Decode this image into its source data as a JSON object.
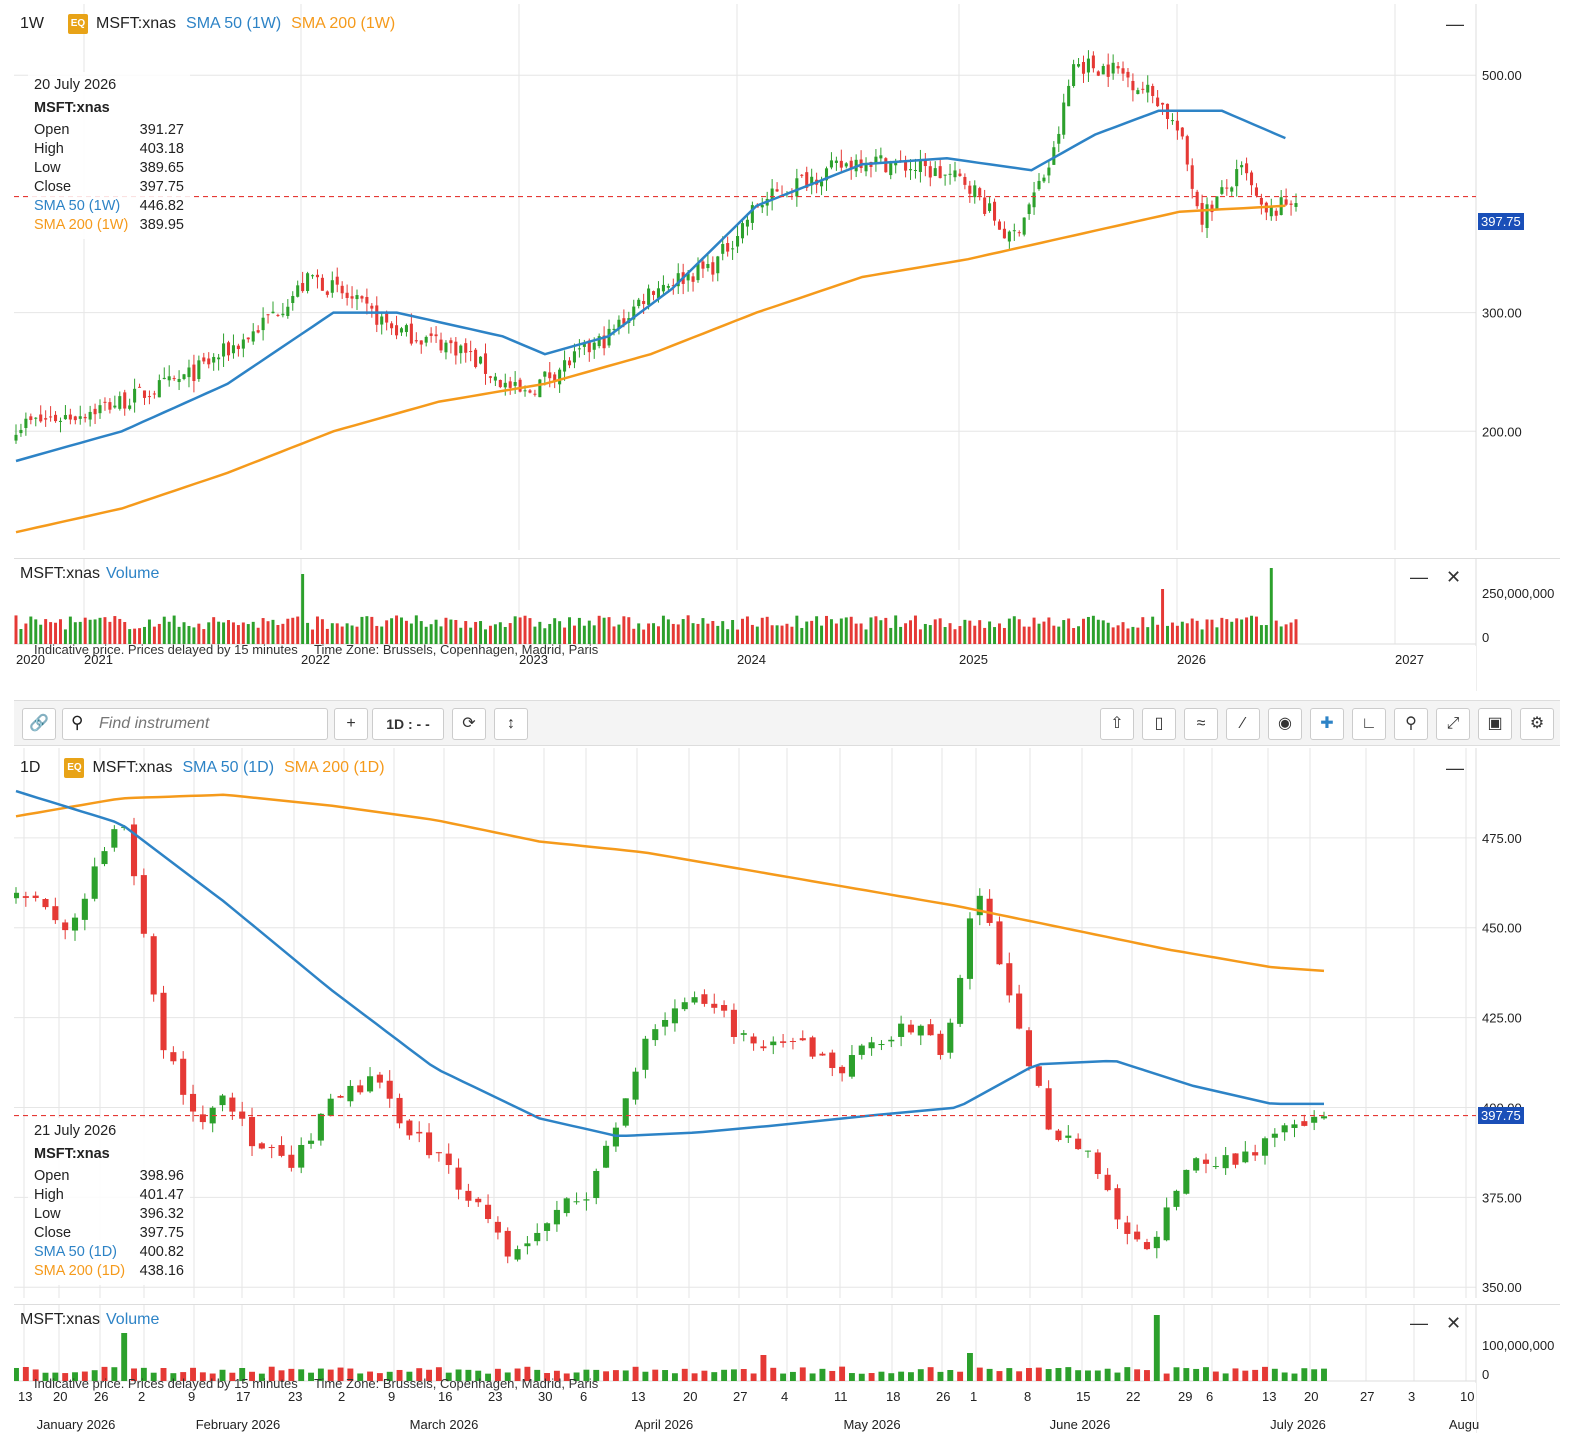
{
  "top": {
    "timeframe": "1W",
    "badge": "EQ",
    "symbol": "MSFT:xnas",
    "sma50_label": "SMA 50 (1W)",
    "sma200_label": "SMA 200 (1W)",
    "info": {
      "date": "20 July 2026",
      "symbol": "MSFT:xnas",
      "open_label": "Open",
      "open": "391.27",
      "high_label": "High",
      "high": "403.18",
      "low_label": "Low",
      "low": "389.65",
      "close_label": "Close",
      "close": "397.75",
      "sma50_label": "SMA 50 (1W)",
      "sma50": "446.82",
      "sma200_label": "SMA 200 (1W)",
      "sma200": "389.95"
    },
    "last_price": "397.75",
    "volume_title": "MSFT:xnas",
    "volume_label": "Volume",
    "notice": "Indicative price. Prices delayed by 15 minutes",
    "timezone": "Time Zone: Brussels, Copenhagen, Madrid, Paris",
    "collapse_icon": "minus-icon",
    "close_icon": "close-icon"
  },
  "bottom": {
    "timeframe": "1D",
    "badge": "EQ",
    "symbol": "MSFT:xnas",
    "sma50_label": "SMA 50 (1D)",
    "sma200_label": "SMA 200 (1D)",
    "info": {
      "date": "21 July 2026",
      "symbol": "MSFT:xnas",
      "open_label": "Open",
      "open": "398.96",
      "high_label": "High",
      "high": "401.47",
      "low_label": "Low",
      "low": "396.32",
      "close_label": "Close",
      "close": "397.75",
      "sma50_label": "SMA 50 (1D)",
      "sma50": "400.82",
      "sma200_label": "SMA 200 (1D)",
      "sma200": "438.16"
    },
    "last_price": "397.75",
    "volume_title": "MSFT:xnas",
    "volume_label": "Volume",
    "notice": "Indicative price. Prices delayed by 15 minutes",
    "timezone": "Time Zone: Brussels, Copenhagen, Madrid, Paris"
  },
  "toolbar": {
    "search_placeholder": "Find instrument",
    "add_label": "+",
    "interval_label": "1D : - -",
    "icons": [
      "link-icon",
      "search-icon",
      "plus-icon",
      "refresh-icon",
      "vertical-arrows-icon",
      "share-icon",
      "candles-icon",
      "indicator-icon",
      "draw-line-icon",
      "eye-icon",
      "crosshair-icon",
      "curve-icon",
      "zoom-icon",
      "fullscreen-icon",
      "camera-icon",
      "gear-icon"
    ]
  },
  "colors": {
    "up": "#2ca02c",
    "down": "#e53935",
    "sma50": "#2d83c6",
    "sma200": "#f59a1b",
    "price_line": "#e53935",
    "price_tag": "#1a4fb8"
  },
  "chart_data": [
    {
      "type": "candlestick",
      "timeframe": "weekly",
      "y_ticks": [
        "200.00",
        "300.00",
        "500.00"
      ],
      "ylim": [
        100,
        560
      ],
      "x_ticks": [
        "2020",
        "2021",
        "2022",
        "2023",
        "2024",
        "2025",
        "2026",
        "2027"
      ],
      "close_path": [
        [
          2020.5,
          205
        ],
        [
          2020.8,
          215
        ],
        [
          2021.0,
          225
        ],
        [
          2021.3,
          245
        ],
        [
          2021.6,
          280
        ],
        [
          2021.9,
          330
        ],
        [
          2022.0,
          320
        ],
        [
          2022.3,
          285
        ],
        [
          2022.6,
          270
        ],
        [
          2022.8,
          240
        ],
        [
          2022.9,
          230
        ],
        [
          2023.0,
          245
        ],
        [
          2023.3,
          280
        ],
        [
          2023.5,
          320
        ],
        [
          2023.8,
          340
        ],
        [
          2024.0,
          390
        ],
        [
          2024.2,
          410
        ],
        [
          2024.5,
          430
        ],
        [
          2024.8,
          420
        ],
        [
          2025.0,
          410
        ],
        [
          2025.2,
          360
        ],
        [
          2025.4,
          430
        ],
        [
          2025.5,
          510
        ],
        [
          2025.7,
          505
        ],
        [
          2025.9,
          480
        ],
        [
          2026.0,
          450
        ],
        [
          2026.1,
          380
        ],
        [
          2026.3,
          420
        ],
        [
          2026.4,
          380
        ],
        [
          2026.55,
          397.75
        ]
      ],
      "sma50_path": [
        [
          2020.5,
          175
        ],
        [
          2021.0,
          200
        ],
        [
          2021.5,
          240
        ],
        [
          2022.0,
          300
        ],
        [
          2022.3,
          300
        ],
        [
          2022.8,
          280
        ],
        [
          2023.0,
          265
        ],
        [
          2023.3,
          280
        ],
        [
          2023.6,
          320
        ],
        [
          2024.0,
          390
        ],
        [
          2024.5,
          425
        ],
        [
          2024.9,
          430
        ],
        [
          2025.3,
          420
        ],
        [
          2025.6,
          450
        ],
        [
          2025.9,
          470
        ],
        [
          2026.2,
          470
        ],
        [
          2026.5,
          447
        ]
      ],
      "sma200_path": [
        [
          2020.5,
          115
        ],
        [
          2021.0,
          135
        ],
        [
          2021.5,
          165
        ],
        [
          2022.0,
          200
        ],
        [
          2022.5,
          225
        ],
        [
          2023.0,
          240
        ],
        [
          2023.5,
          265
        ],
        [
          2024.0,
          300
        ],
        [
          2024.5,
          330
        ],
        [
          2025.0,
          345
        ],
        [
          2025.5,
          365
        ],
        [
          2026.0,
          385
        ],
        [
          2026.5,
          390
        ]
      ],
      "last_price": 397.75,
      "volume_ticks": [
        "250,000,000",
        "0"
      ]
    },
    {
      "type": "candlestick",
      "timeframe": "daily",
      "y_ticks": [
        "350.00",
        "375.00",
        "400.00",
        "425.00",
        "450.00",
        "475.00"
      ],
      "ylim": [
        347,
        500
      ],
      "x_ticks": [
        "13",
        "20",
        "26",
        "2",
        "9",
        "17",
        "23",
        "2",
        "9",
        "16",
        "23",
        "30",
        "6",
        "13",
        "20",
        "27",
        "4",
        "11",
        "18",
        "26",
        "1",
        "8",
        "15",
        "22",
        "29",
        "6",
        "13",
        "20",
        "27",
        "3",
        "10"
      ],
      "month_labels": [
        "January 2026",
        "February 2026",
        "March 2026",
        "April 2026",
        "May 2026",
        "June 2026",
        "July 2026",
        "Augu"
      ],
      "close_path": [
        [
          0,
          462
        ],
        [
          4,
          448
        ],
        [
          6,
          465
        ],
        [
          8,
          480
        ],
        [
          9,
          465
        ],
        [
          11,
          420
        ],
        [
          14,
          395
        ],
        [
          16,
          405
        ],
        [
          18,
          390
        ],
        [
          21,
          383
        ],
        [
          24,
          400
        ],
        [
          27,
          408
        ],
        [
          30,
          395
        ],
        [
          33,
          383
        ],
        [
          36,
          370
        ],
        [
          38,
          358
        ],
        [
          41,
          370
        ],
        [
          44,
          378
        ],
        [
          46,
          395
        ],
        [
          48,
          420
        ],
        [
          51,
          430
        ],
        [
          54,
          425
        ],
        [
          57,
          415
        ],
        [
          60,
          418
        ],
        [
          63,
          410
        ],
        [
          66,
          420
        ],
        [
          69,
          422
        ],
        [
          71,
          415
        ],
        [
          73,
          452
        ],
        [
          74,
          462
        ],
        [
          75,
          440
        ],
        [
          77,
          418
        ],
        [
          79,
          395
        ],
        [
          82,
          388
        ],
        [
          84,
          370
        ],
        [
          86,
          360
        ],
        [
          88,
          370
        ],
        [
          90,
          385
        ],
        [
          93,
          385
        ],
        [
          96,
          392
        ],
        [
          99,
          395
        ],
        [
          100,
          398
        ]
      ],
      "sma50_path": [
        [
          0,
          488
        ],
        [
          8,
          479
        ],
        [
          16,
          457
        ],
        [
          24,
          433
        ],
        [
          32,
          411
        ],
        [
          40,
          397
        ],
        [
          46,
          392
        ],
        [
          52,
          393
        ],
        [
          58,
          395
        ],
        [
          66,
          398
        ],
        [
          72,
          400
        ],
        [
          78,
          412
        ],
        [
          84,
          413
        ],
        [
          90,
          406
        ],
        [
          96,
          401
        ],
        [
          100,
          401
        ]
      ],
      "sma200_path": [
        [
          0,
          481
        ],
        [
          8,
          486
        ],
        [
          16,
          487
        ],
        [
          24,
          484
        ],
        [
          32,
          480
        ],
        [
          40,
          474
        ],
        [
          48,
          471
        ],
        [
          56,
          466
        ],
        [
          64,
          461
        ],
        [
          72,
          456
        ],
        [
          80,
          450
        ],
        [
          88,
          444
        ],
        [
          96,
          439
        ],
        [
          100,
          438
        ]
      ],
      "last_price": 397.75,
      "volume_ticks": [
        "100,000,000",
        "0"
      ]
    }
  ]
}
